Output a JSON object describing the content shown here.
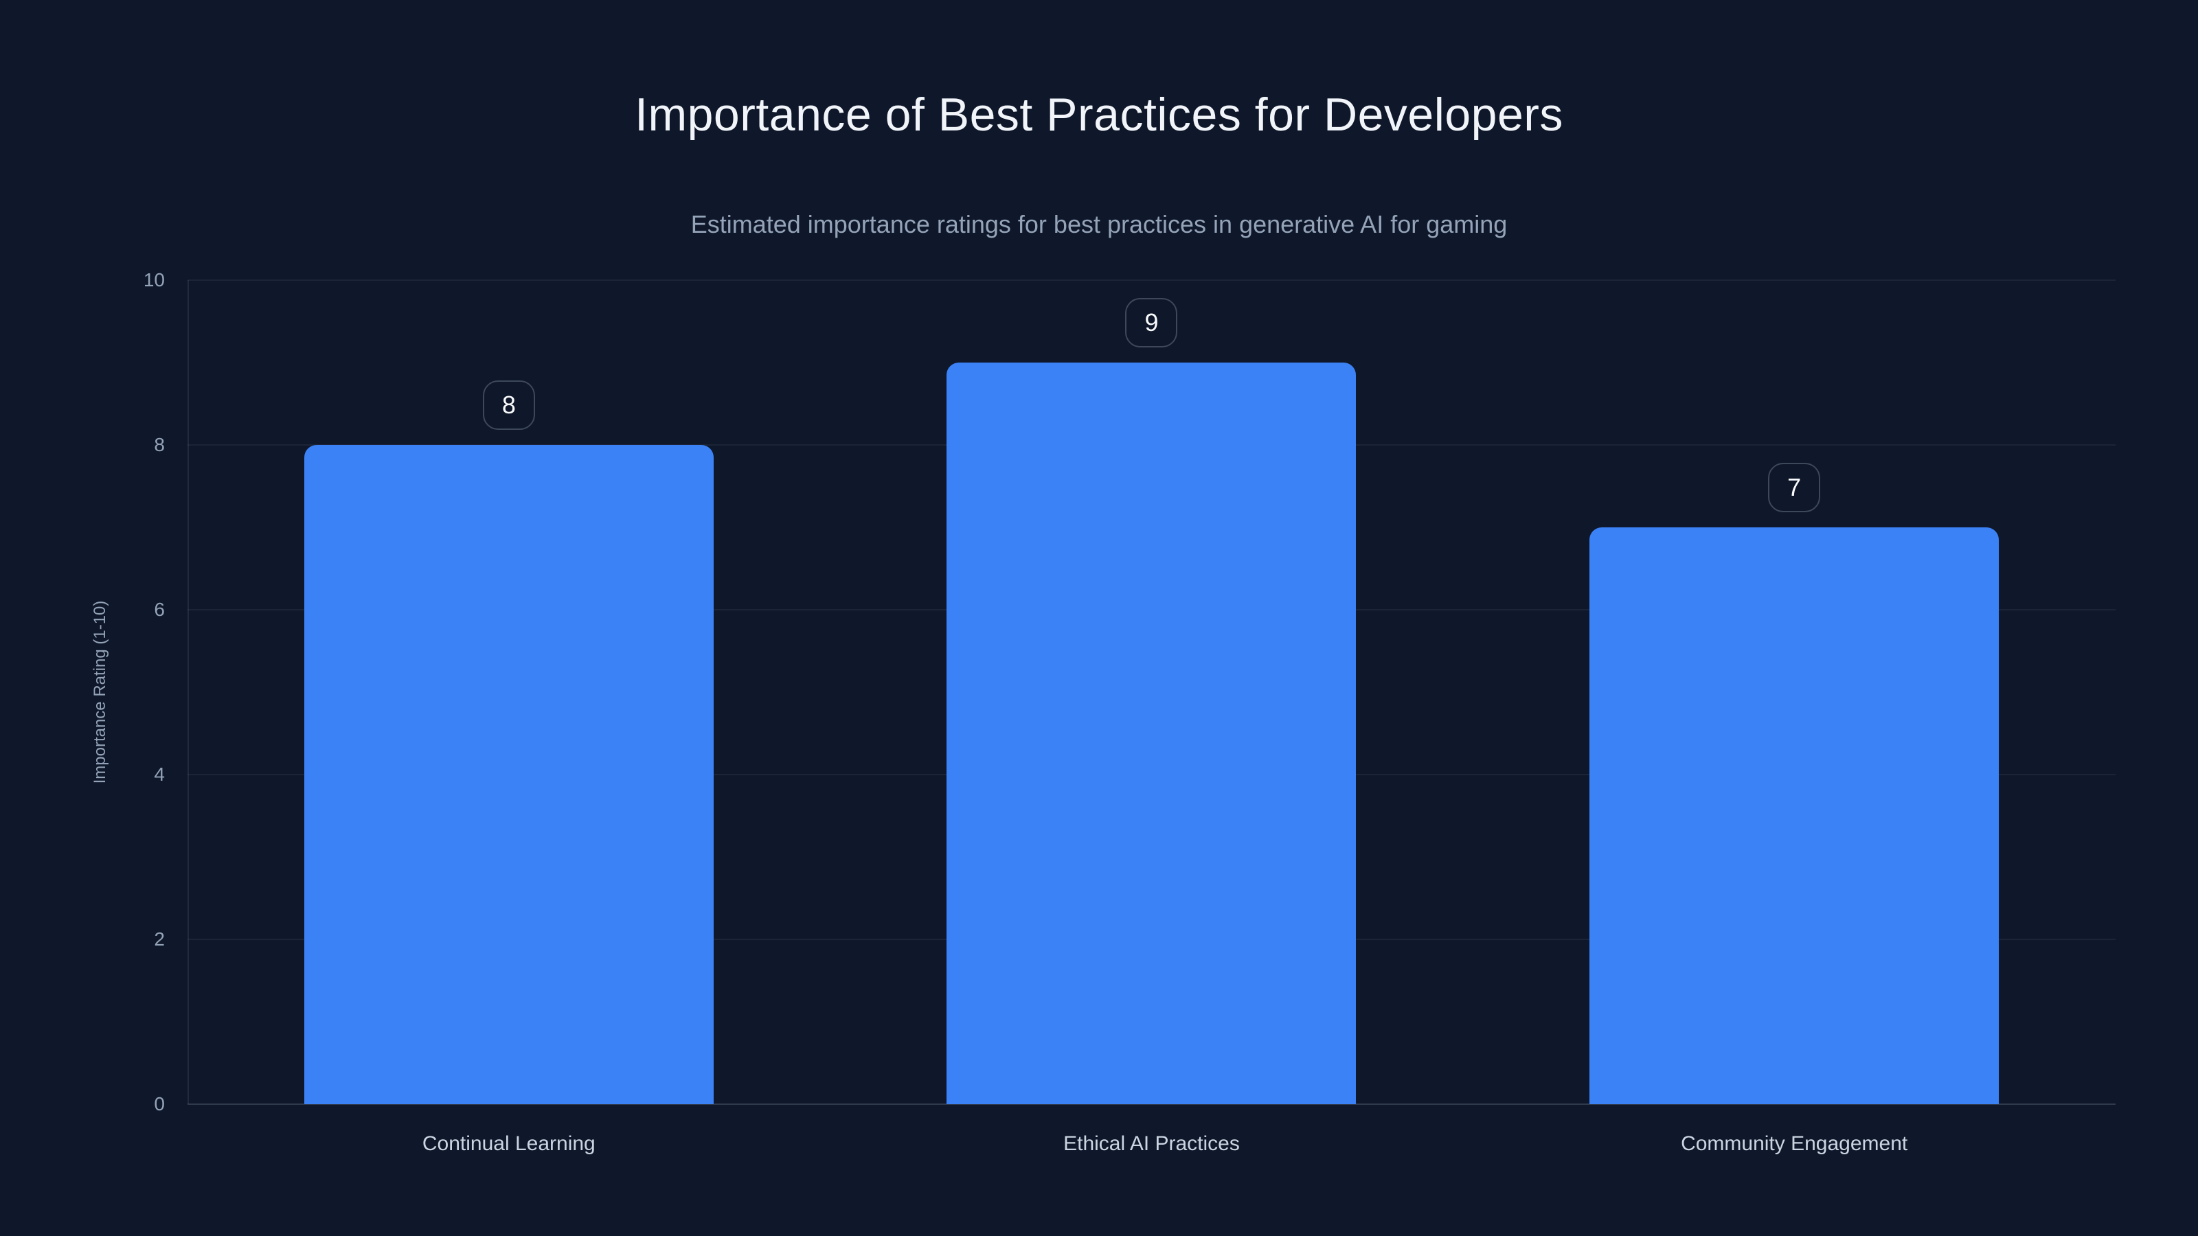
{
  "chart_data": {
    "type": "bar",
    "title": "Importance of Best Practices for Developers",
    "subtitle": "Estimated importance ratings for best practices in generative AI for gaming",
    "categories": [
      "Continual Learning",
      "Ethical AI Practices",
      "Community Engagement"
    ],
    "values": [
      8,
      9,
      7
    ],
    "value_labels": [
      "8",
      "9",
      "7"
    ],
    "xlabel": "",
    "ylabel": "Importance Rating (1-10)",
    "ylim": [
      0,
      10
    ],
    "yticks": [
      0,
      2,
      4,
      6,
      8,
      10
    ],
    "grid": true,
    "legend": false,
    "colors": {
      "bg": "#0f172a",
      "bar": "#3b82f6",
      "title_text": "#f1f5f9",
      "subtitle_text": "#94a3b8",
      "y_tick_text": "#94a3b8",
      "x_tick_text": "#cbd5e1",
      "gridline": "rgba(148,163,184,0.10)",
      "axis_line": "rgba(148,163,184,0.25)",
      "y_axis_line": "rgba(148,163,184,0.15)",
      "badge_border": "rgba(148,163,184,0.35)",
      "badge_text": "#f8fafc"
    }
  }
}
